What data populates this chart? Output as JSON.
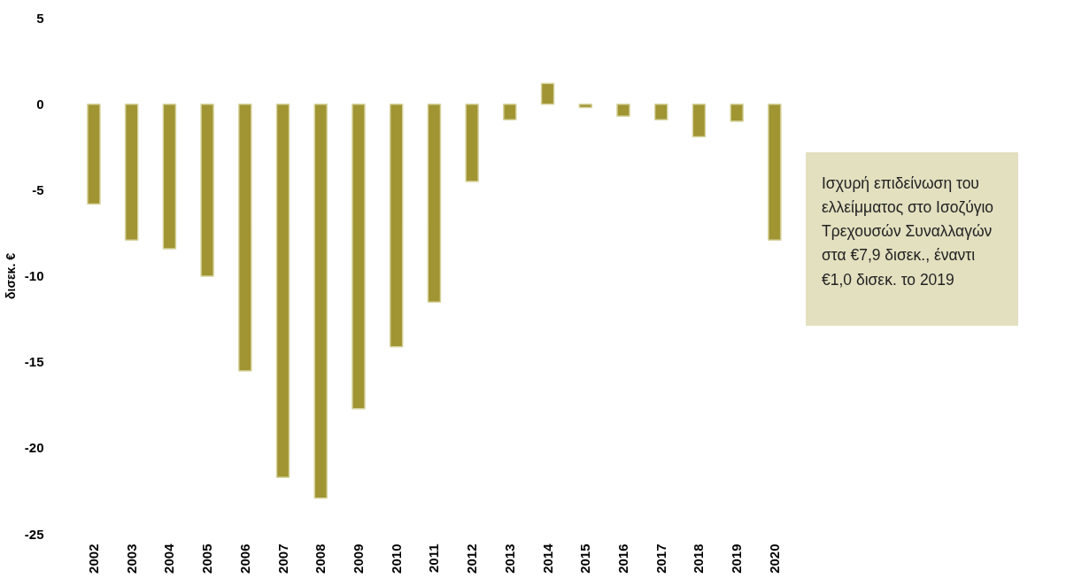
{
  "chart_data": {
    "type": "bar",
    "ylabel": "δισεκ. €",
    "categories": [
      "2002",
      "2003",
      "2004",
      "2005",
      "2006",
      "2007",
      "2008",
      "2009",
      "2010",
      "2011",
      "2012",
      "2013",
      "2014",
      "2015",
      "2016",
      "2017",
      "2018",
      "2019",
      "2020"
    ],
    "values": [
      -5.8,
      -7.9,
      -8.4,
      -10.0,
      -15.5,
      -21.7,
      -22.9,
      -17.7,
      -14.1,
      -11.5,
      -4.5,
      -0.9,
      1.2,
      -0.2,
      -0.7,
      -0.9,
      -1.9,
      -1.0,
      -7.9
    ],
    "color": "#a09433",
    "ylim": [
      -25,
      5
    ],
    "yticks": [
      -25,
      -20,
      -15,
      -10,
      -5,
      0,
      5
    ],
    "grid": false,
    "annotations": [
      "Ισχυρή επιδείνωση του ελλείμματος στο Ισοζύγιο Τρεχουσών Συναλλαγών στα €7,9 δισεκ., έναντι €1,0 δισεκ. το 2019"
    ]
  }
}
